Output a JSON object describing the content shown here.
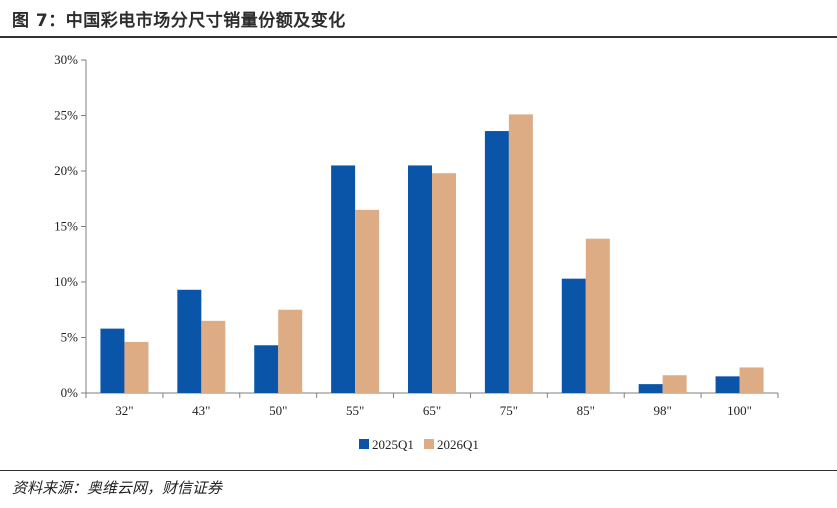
{
  "figure": {
    "title": "图 7：中国彩电市场分尺寸销量份额及变化",
    "source": "资料来源：奥维云网，财信证券"
  },
  "colors": {
    "series_2025": "#0b55a8",
    "series_2026": "#ddab84",
    "axis": "#7f7f7f"
  },
  "chart_data": {
    "type": "bar",
    "categories": [
      "32\"",
      "43\"",
      "50\"",
      "55\"",
      "65\"",
      "75\"",
      "85\"",
      "98\"",
      "100\""
    ],
    "series": [
      {
        "name": "2025Q1",
        "values": [
          5.8,
          9.3,
          4.3,
          20.5,
          20.5,
          23.6,
          10.3,
          0.8,
          1.5
        ]
      },
      {
        "name": "2026Q1",
        "values": [
          4.6,
          6.5,
          7.5,
          16.5,
          19.8,
          25.1,
          13.9,
          1.6,
          2.3
        ]
      }
    ],
    "ylim": [
      0,
      30
    ],
    "yticks": [
      "0%",
      "5%",
      "10%",
      "15%",
      "20%",
      "25%",
      "30%"
    ],
    "grid": false,
    "legend_position": "bottom-center"
  }
}
